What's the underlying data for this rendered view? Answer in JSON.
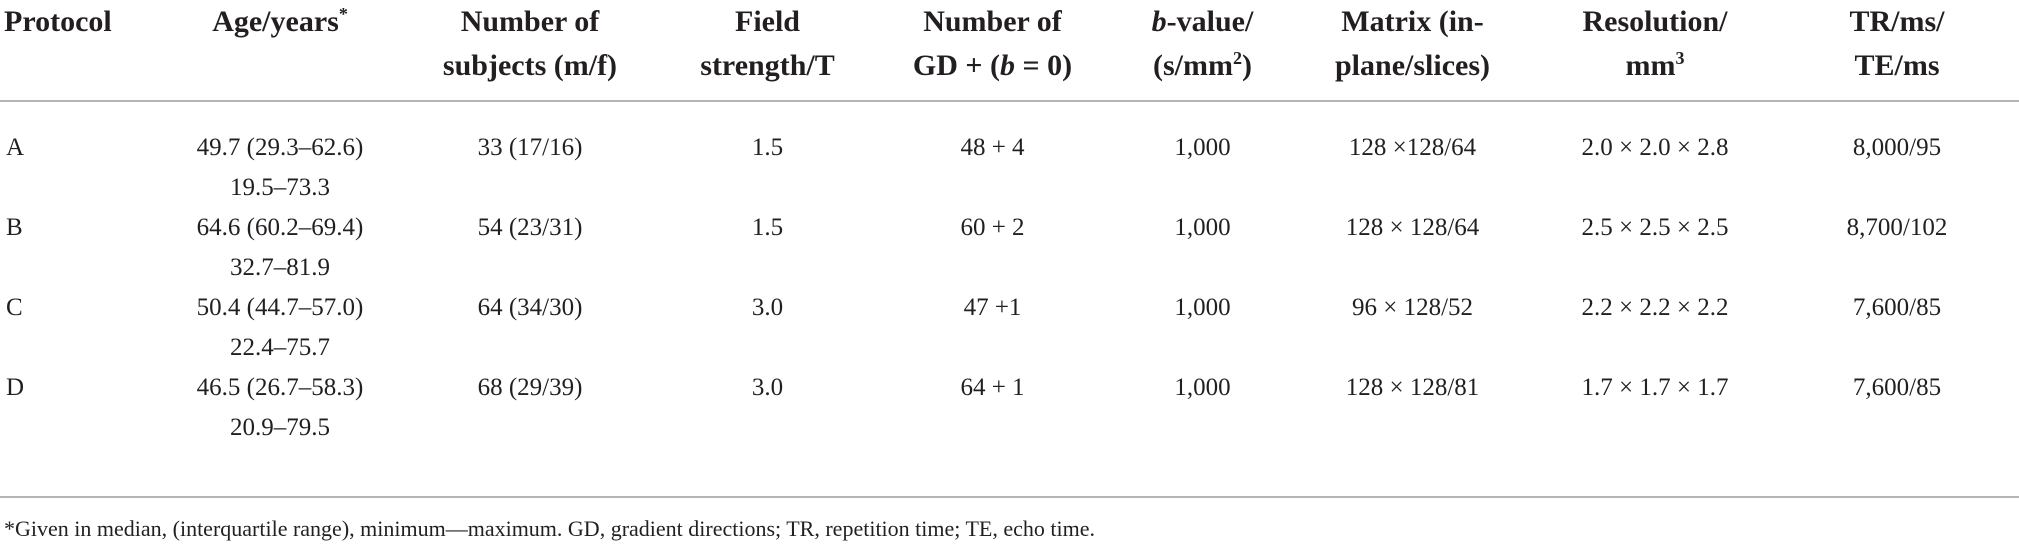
{
  "table": {
    "headers": [
      "Protocol",
      "Age/years*",
      "Number of\nsubjects (m/f)",
      "Field\nstrength/T",
      "Number of\nGD + (b = 0)",
      "b-value/\n(s/mm2)",
      "Matrix (in-\nplane/slices)",
      "Resolution/\nmm3",
      "TR/ms/\nTE/ms"
    ],
    "rows": [
      {
        "protocol": "A",
        "age_median_iqr": "49.7 (29.3–62.6)",
        "age_range": "19.5–73.3",
        "subjects": "33 (17/16)",
        "field_strength": "1.5",
        "gd": "48 + 4",
        "b_value": "1,000",
        "matrix": "128 ×128/64",
        "resolution": "2.0 × 2.0 × 2.8",
        "tr_te": "8,000/95"
      },
      {
        "protocol": "B",
        "age_median_iqr": "64.6 (60.2–69.4)",
        "age_range": "32.7–81.9",
        "subjects": "54 (23/31)",
        "field_strength": "1.5",
        "gd": "60 + 2",
        "b_value": "1,000",
        "matrix": "128 × 128/64",
        "resolution": "2.5 × 2.5 × 2.5",
        "tr_te": "8,700/102"
      },
      {
        "protocol": "C",
        "age_median_iqr": "50.4 (44.7–57.0)",
        "age_range": "22.4–75.7",
        "subjects": "64 (34/30)",
        "field_strength": "3.0",
        "gd": "47 +1",
        "b_value": "1,000",
        "matrix": "96 × 128/52",
        "resolution": "2.2 × 2.2 × 2.2",
        "tr_te": "7,600/85"
      },
      {
        "protocol": "D",
        "age_median_iqr": "46.5 (26.7–58.3)",
        "age_range": "20.9–79.5",
        "subjects": "68 (29/39)",
        "field_strength": "3.0",
        "gd": "64 + 1",
        "b_value": "1,000",
        "matrix": "128 × 128/81",
        "resolution": "1.7 × 1.7 × 1.7",
        "tr_te": "7,600/85"
      }
    ],
    "footnote": "*Given in median, (interquartile range), minimum—maximum. GD, gradient directions; TR, repetition time; TE, echo time."
  }
}
